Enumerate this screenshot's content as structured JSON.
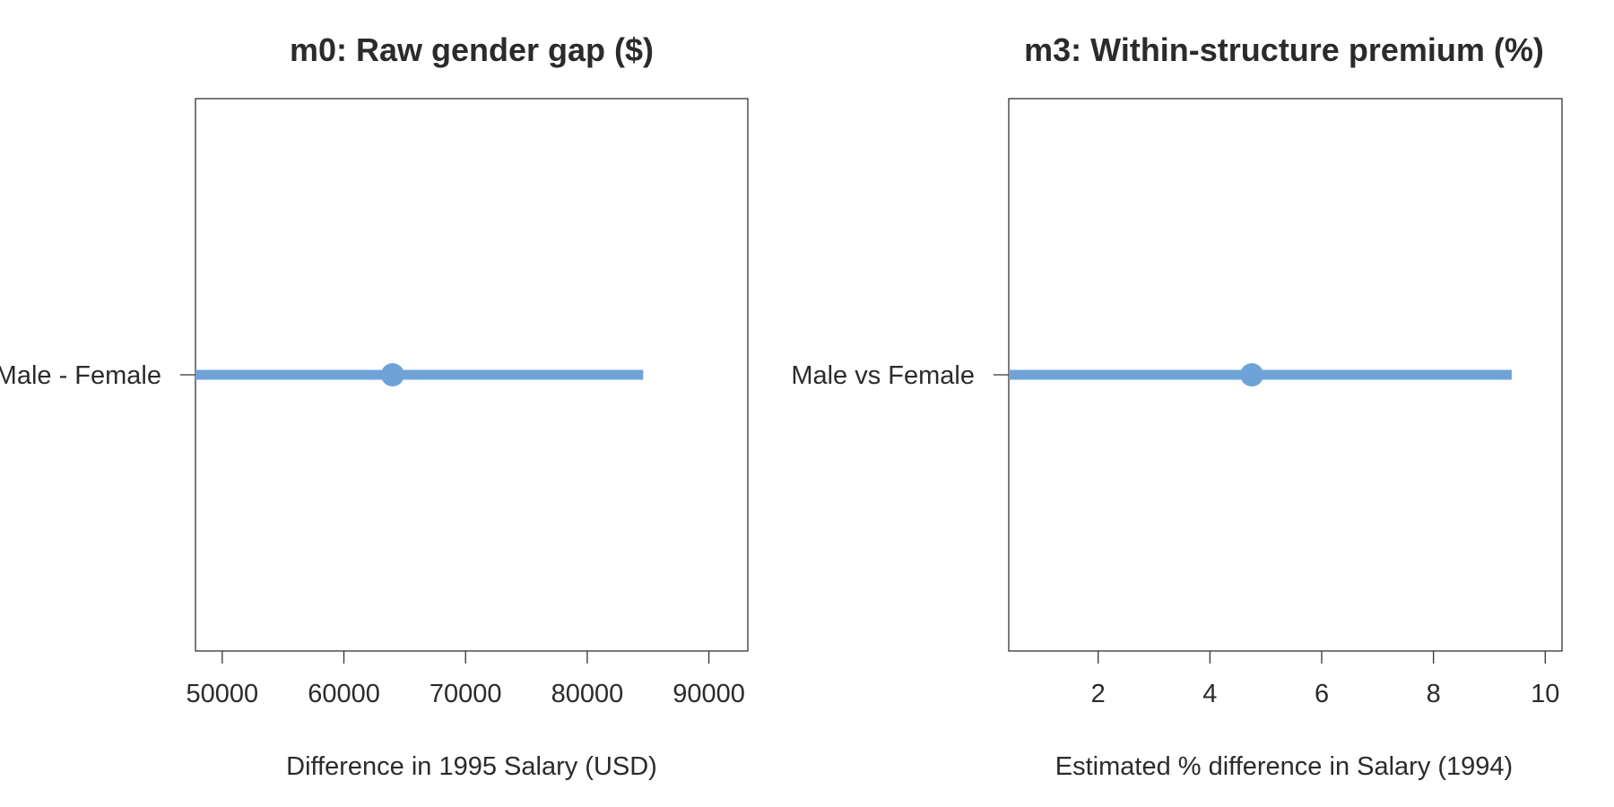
{
  "chart_data": [
    {
      "type": "scatter",
      "title": "m0: Raw gender gap ($)",
      "xlabel": "Difference in 1995 Salary (USD)",
      "ylabel": "",
      "categories": [
        "Male - Female"
      ],
      "estimates": [
        {
          "label": "Male - Female",
          "estimate": 64000,
          "lower": 47800,
          "upper": 84600
        }
      ],
      "xticks": [
        "50000",
        "60000",
        "70000",
        "80000",
        "90000"
      ],
      "xtick_values": [
        50000,
        60000,
        70000,
        80000,
        90000
      ],
      "xlim": [
        47800,
        93200
      ],
      "grid": false,
      "legend": "none",
      "color": "#6fa3d8"
    },
    {
      "type": "scatter",
      "title": "m3: Within-structure premium (%)",
      "xlabel": "Estimated % difference in Salary (1994)",
      "ylabel": "",
      "categories": [
        "Male vs Female"
      ],
      "estimates": [
        {
          "label": "Male vs Female",
          "estimate": 4.75,
          "lower": 0.4,
          "upper": 9.4
        }
      ],
      "xticks": [
        "2",
        "4",
        "6",
        "8",
        "10"
      ],
      "xtick_values": [
        2,
        4,
        6,
        8,
        10
      ],
      "xlim": [
        0.4,
        10.3
      ],
      "grid": false,
      "legend": "none",
      "color": "#6fa3d8"
    }
  ]
}
